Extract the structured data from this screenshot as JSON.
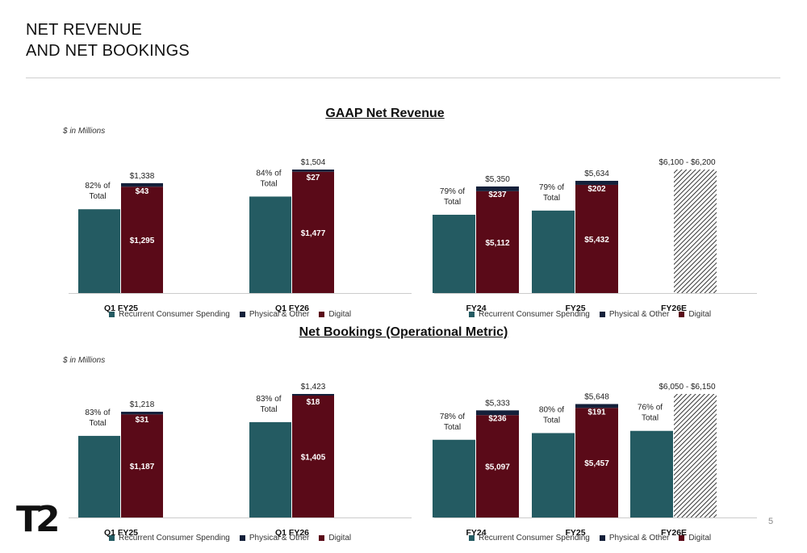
{
  "page": {
    "title_line1": "NET REVENUE",
    "title_line2": "AND NET BOOKINGS",
    "section1_title": "GAAP Net Revenue",
    "section2_title": "Net Bookings (Operational Metric)",
    "units_note": "$ in Millions",
    "logo_text": "T2",
    "page_number": "5"
  },
  "legend": {
    "recurrent": "Recurrent Consumer Spending",
    "physical": "Physical & Other",
    "digital": "Digital"
  },
  "colors": {
    "recurrent": "#245b62",
    "physical": "#14203a",
    "digital": "#5a0a18",
    "outlook_hatch": "#333333"
  },
  "chart_data": [
    {
      "type": "bar",
      "id": "gaap-quarterly",
      "categories": [
        "Q1 FY25",
        "Q1 FY26"
      ],
      "stacked_series": [
        {
          "name": "Digital",
          "values": [
            1295,
            1477
          ],
          "labels": [
            "$1,295",
            "$1,477"
          ]
        },
        {
          "name": "Physical & Other",
          "values": [
            43,
            27
          ],
          "labels": [
            "$43",
            "$27"
          ]
        }
      ],
      "totals": [
        "$1,338",
        "$1,504"
      ],
      "recurrent_share": [
        0.82,
        0.84
      ],
      "recurrent_labels": [
        "82% of Total",
        "84% of Total"
      ],
      "outlook": null
    },
    {
      "type": "bar",
      "id": "gaap-annual",
      "categories": [
        "FY24",
        "FY25",
        "FY26E"
      ],
      "stacked_series": [
        {
          "name": "Digital",
          "values": [
            5112,
            5432,
            null
          ],
          "labels": [
            "$5,112",
            "$5,432",
            ""
          ]
        },
        {
          "name": "Physical & Other",
          "values": [
            237,
            202,
            null
          ],
          "labels": [
            "$237",
            "$202",
            ""
          ]
        }
      ],
      "totals": [
        "$5,350",
        "$5,634",
        "$6,100 - $6,200"
      ],
      "recurrent_share": [
        0.79,
        0.79,
        null
      ],
      "recurrent_labels": [
        "79% of Total",
        "79% of Total",
        ""
      ],
      "outlook": {
        "index": 2,
        "low": 6100,
        "high": 6200
      }
    },
    {
      "type": "bar",
      "id": "bookings-quarterly",
      "categories": [
        "Q1 FY25",
        "Q1 FY26"
      ],
      "stacked_series": [
        {
          "name": "Digital",
          "values": [
            1187,
            1405
          ],
          "labels": [
            "$1,187",
            "$1,405"
          ]
        },
        {
          "name": "Physical & Other",
          "values": [
            31,
            18
          ],
          "labels": [
            "$31",
            "$18"
          ]
        }
      ],
      "totals": [
        "$1,218",
        "$1,423"
      ],
      "recurrent_share": [
        0.83,
        0.83
      ],
      "recurrent_labels": [
        "83% of Total",
        "83% of Total"
      ],
      "outlook": null
    },
    {
      "type": "bar",
      "id": "bookings-annual",
      "categories": [
        "FY24",
        "FY25",
        "FY26E"
      ],
      "stacked_series": [
        {
          "name": "Digital",
          "values": [
            5097,
            5457,
            null
          ],
          "labels": [
            "$5,097",
            "$5,457",
            ""
          ]
        },
        {
          "name": "Physical & Other",
          "values": [
            236,
            191,
            null
          ],
          "labels": [
            "$236",
            "$191",
            ""
          ]
        }
      ],
      "totals": [
        "$5,333",
        "$5,648",
        "$6,050 - $6,150"
      ],
      "recurrent_share": [
        0.78,
        0.8,
        0.76
      ],
      "recurrent_labels": [
        "78% of Total",
        "80% of Total",
        "76% of Total"
      ],
      "outlook": {
        "index": 2,
        "low": 6050,
        "high": 6150
      }
    }
  ]
}
